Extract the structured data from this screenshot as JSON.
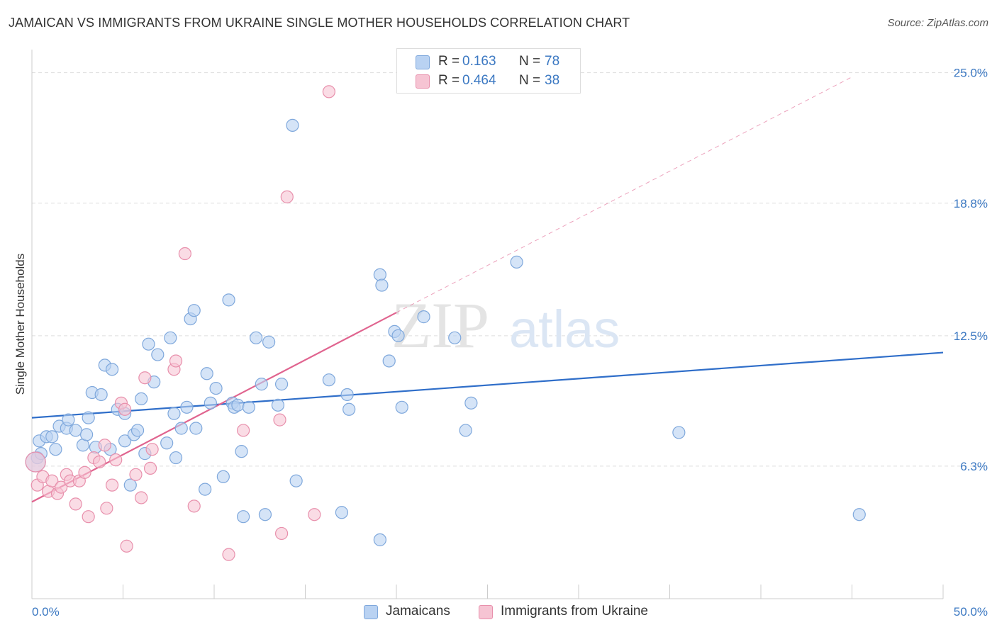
{
  "header": {
    "title": "JAMAICAN VS IMMIGRANTS FROM UKRAINE SINGLE MOTHER HOUSEHOLDS CORRELATION CHART",
    "source": "Source: ZipAtlas.com"
  },
  "legend": {
    "r_label": "R =",
    "n_label": "N =",
    "rows": [
      {
        "r": "0.163",
        "n": "78"
      },
      {
        "r": "0.464",
        "n": "38"
      }
    ]
  },
  "watermark": {
    "part1": "ZIP",
    "part2": "atlas"
  },
  "colors": {
    "jamaicans_fill": "#b9d2f2",
    "jamaicans_stroke": "#7fa8dc",
    "jamaicans_line": "#2f6ec9",
    "ukraine_fill": "#f6c4d3",
    "ukraine_stroke": "#e890ac",
    "ukraine_line": "#e0648f",
    "axis_label": "#3b78c2",
    "grid": "#dddddd"
  },
  "chart_data": {
    "type": "scatter",
    "title": "JAMAICAN VS IMMIGRANTS FROM UKRAINE SINGLE MOTHER HOUSEHOLDS CORRELATION CHART",
    "xlabel": "",
    "ylabel": "Single Mother Households",
    "xlim": [
      0,
      50
    ],
    "ylim": [
      0,
      26.1
    ],
    "x_tick_labels": [
      "0.0%",
      "50.0%"
    ],
    "y_ticks": [
      6.3,
      12.5,
      18.8,
      25.0
    ],
    "y_tick_labels": [
      "6.3%",
      "12.5%",
      "18.8%",
      "25.0%"
    ],
    "grid": true,
    "legend_position": "top-center",
    "series": [
      {
        "name": "Jamaicans",
        "r": 0.163,
        "n": 78,
        "trend": {
          "x": [
            0,
            50
          ],
          "y": [
            8.6,
            11.7
          ],
          "dashed_extension": false
        },
        "points": [
          [
            0.3,
            6.7
          ],
          [
            0.5,
            6.9
          ],
          [
            0.4,
            7.5
          ],
          [
            0.8,
            7.7
          ],
          [
            1.1,
            7.7
          ],
          [
            1.3,
            7.1
          ],
          [
            1.5,
            8.2
          ],
          [
            1.9,
            8.1
          ],
          [
            2.0,
            8.5
          ],
          [
            2.4,
            8.0
          ],
          [
            2.8,
            7.3
          ],
          [
            3.0,
            7.8
          ],
          [
            3.1,
            8.6
          ],
          [
            3.3,
            9.8
          ],
          [
            3.8,
            9.7
          ],
          [
            4.0,
            11.1
          ],
          [
            4.4,
            10.9
          ],
          [
            3.5,
            7.2
          ],
          [
            4.3,
            7.1
          ],
          [
            4.7,
            9.0
          ],
          [
            5.1,
            7.5
          ],
          [
            5.1,
            8.8
          ],
          [
            5.4,
            5.4
          ],
          [
            5.6,
            7.8
          ],
          [
            5.8,
            8.0
          ],
          [
            6.0,
            9.5
          ],
          [
            6.2,
            6.9
          ],
          [
            6.4,
            12.1
          ],
          [
            6.7,
            10.3
          ],
          [
            6.9,
            11.6
          ],
          [
            7.4,
            7.4
          ],
          [
            7.6,
            12.4
          ],
          [
            7.8,
            8.8
          ],
          [
            7.9,
            6.7
          ],
          [
            8.2,
            8.1
          ],
          [
            8.5,
            9.1
          ],
          [
            8.7,
            13.3
          ],
          [
            8.9,
            13.7
          ],
          [
            9.0,
            8.1
          ],
          [
            9.5,
            5.2
          ],
          [
            9.6,
            10.7
          ],
          [
            9.8,
            9.3
          ],
          [
            10.1,
            10.0
          ],
          [
            10.5,
            5.8
          ],
          [
            10.8,
            14.2
          ],
          [
            11.0,
            9.3
          ],
          [
            11.1,
            9.1
          ],
          [
            11.3,
            9.2
          ],
          [
            11.5,
            7.0
          ],
          [
            11.6,
            3.9
          ],
          [
            11.9,
            9.1
          ],
          [
            12.3,
            12.4
          ],
          [
            12.6,
            10.2
          ],
          [
            12.8,
            4.0
          ],
          [
            13.0,
            12.2
          ],
          [
            13.5,
            9.2
          ],
          [
            13.7,
            10.2
          ],
          [
            14.3,
            22.5
          ],
          [
            14.5,
            5.6
          ],
          [
            16.3,
            10.4
          ],
          [
            17.0,
            4.1
          ],
          [
            17.3,
            9.7
          ],
          [
            17.4,
            9.0
          ],
          [
            19.1,
            2.8
          ],
          [
            19.1,
            15.4
          ],
          [
            19.2,
            14.9
          ],
          [
            19.6,
            11.3
          ],
          [
            19.9,
            12.7
          ],
          [
            20.1,
            12.5
          ],
          [
            20.3,
            9.1
          ],
          [
            21.5,
            13.4
          ],
          [
            23.2,
            12.4
          ],
          [
            23.8,
            8.0
          ],
          [
            24.1,
            9.3
          ],
          [
            26.6,
            16.0
          ],
          [
            35.5,
            7.9
          ],
          [
            45.4,
            4.0
          ],
          [
            0.2,
            6.5
          ]
        ]
      },
      {
        "name": "Immigrants from Ukraine",
        "r": 0.464,
        "n": 38,
        "trend": {
          "x": [
            0,
            20.0
          ],
          "y": [
            4.6,
            13.6
          ],
          "dashed_extension": true,
          "dashed_to": [
            45,
            24.8
          ]
        },
        "points": [
          [
            0.3,
            5.4
          ],
          [
            0.6,
            5.8
          ],
          [
            0.9,
            5.1
          ],
          [
            1.1,
            5.6
          ],
          [
            1.4,
            5.0
          ],
          [
            1.6,
            5.3
          ],
          [
            1.9,
            5.9
          ],
          [
            2.1,
            5.6
          ],
          [
            2.4,
            4.5
          ],
          [
            2.6,
            5.6
          ],
          [
            2.9,
            6.0
          ],
          [
            3.1,
            3.9
          ],
          [
            3.4,
            6.7
          ],
          [
            3.7,
            6.5
          ],
          [
            4.0,
            7.3
          ],
          [
            4.1,
            4.3
          ],
          [
            4.4,
            5.4
          ],
          [
            4.6,
            6.6
          ],
          [
            4.9,
            9.3
          ],
          [
            5.1,
            9.0
          ],
          [
            5.2,
            2.5
          ],
          [
            5.7,
            5.9
          ],
          [
            6.0,
            4.8
          ],
          [
            6.2,
            10.5
          ],
          [
            6.5,
            6.2
          ],
          [
            6.6,
            7.1
          ],
          [
            7.8,
            10.9
          ],
          [
            7.9,
            11.3
          ],
          [
            8.4,
            16.4
          ],
          [
            8.9,
            4.4
          ],
          [
            10.8,
            2.1
          ],
          [
            11.6,
            8.0
          ],
          [
            13.6,
            8.5
          ],
          [
            13.7,
            3.1
          ],
          [
            14.0,
            19.1
          ],
          [
            15.5,
            4.0
          ],
          [
            16.3,
            24.1
          ],
          [
            0.2,
            6.5
          ]
        ]
      }
    ]
  }
}
